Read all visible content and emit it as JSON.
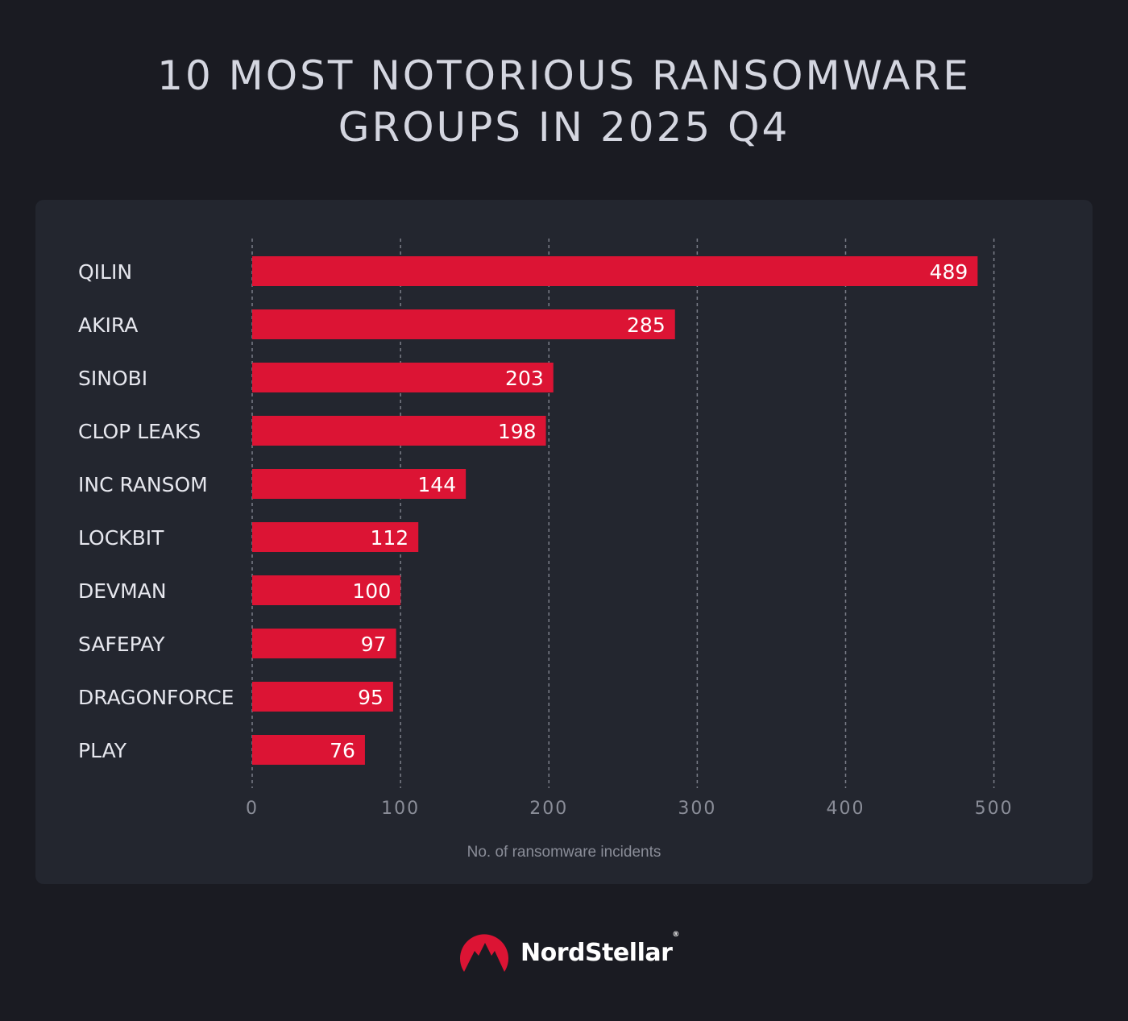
{
  "title_lines": [
    "10 MOST NOTORIOUS RANSOMWARE",
    "GROUPS IN 2025 Q4"
  ],
  "chart_data": {
    "type": "bar",
    "orientation": "horizontal",
    "title": "10 MOST NOTORIOUS RANSOMWARE GROUPS IN 2025 Q4",
    "categories": [
      "QILIN",
      "AKIRA",
      "SINOBI",
      "CLOP LEAKS",
      "INC RANSOM",
      "LOCKBIT",
      "DEVMAN",
      "SAFEPAY",
      "DRAGONFORCE",
      "PLAY"
    ],
    "values": [
      489,
      285,
      203,
      198,
      144,
      112,
      100,
      97,
      95,
      76
    ],
    "xlabel": "No. of ransomware incidents",
    "ylabel": "",
    "xlim": [
      0,
      500
    ],
    "xticks": [
      0,
      100,
      200,
      300,
      400,
      500
    ],
    "grid": "vertical dashed",
    "data_labels": true,
    "colors": {
      "bar": "#dc1434",
      "background": "#1a1b22",
      "panel": "#23262f",
      "grid": "#7a7d88",
      "label": "#e6e7ee",
      "tick": "#8a8d98"
    }
  },
  "footer": {
    "brand": "NordStellar",
    "registered": "®",
    "logo_icon": "mountain-circle-logo",
    "logo_color": "#dc1434"
  }
}
